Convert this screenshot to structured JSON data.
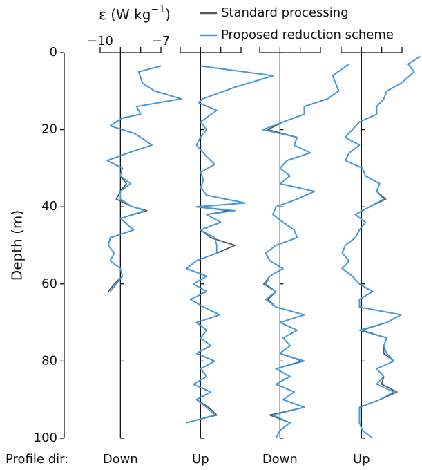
{
  "chart_data": {
    "type": "line",
    "xlabel": [
      "ε (W kg",
      "−1",
      ")"
    ],
    "ylabel": "Depth (m)",
    "direction_label": "Profile dir:",
    "xlim": [
      -10,
      -7
    ],
    "xticks": [
      {
        "value": -10,
        "label": "−10"
      },
      -9,
      -8,
      {
        "value": -7,
        "label": "−7"
      }
    ],
    "ylim": [
      0,
      100
    ],
    "yticks": [
      0,
      20,
      40,
      60,
      80,
      100
    ],
    "series": [
      {
        "name": "Standard processing",
        "color": "#555555"
      },
      {
        "name": "Proposed reduction scheme",
        "color": "#3b9ce8"
      }
    ],
    "panels": [
      {
        "direction": "Down",
        "depth": [
          3.5,
          5,
          8,
          10,
          12,
          14,
          16,
          17,
          19,
          21,
          22,
          24,
          26,
          28,
          30,
          32,
          34,
          36,
          38,
          40,
          41,
          43,
          46,
          48,
          50,
          52,
          54,
          56,
          58,
          60,
          62
        ],
        "values": [
          [
            -7.0,
            -8.1,
            -7.9,
            -7.3,
            -6.0,
            -8.2,
            -8.0,
            -8.9,
            -9.5,
            -8.3,
            -8.0,
            -7.45,
            -8.6,
            -9.65,
            -8.9,
            -9.0,
            -8.7,
            -9.0,
            -9.2,
            -8.4,
            -7.7,
            -9.0,
            -8.35,
            -9.5,
            -9.6,
            -9.3,
            -9.5,
            -9.0,
            -8.9,
            -9.3,
            -9.6
          ],
          [
            -7.0,
            -8.1,
            -7.9,
            -7.3,
            -6.0,
            -8.2,
            -8.0,
            -8.9,
            -9.5,
            -8.3,
            -8.0,
            -7.45,
            -8.6,
            -9.65,
            -8.9,
            -9.0,
            -8.5,
            -9.0,
            -9.0,
            -8.4,
            -7.8,
            -9.0,
            -8.35,
            -9.5,
            -9.6,
            -9.3,
            -9.5,
            -9.0,
            -8.9,
            -9.2,
            -9.5
          ]
        ]
      },
      {
        "direction": "Up",
        "depth": [
          3.5,
          6,
          9,
          12,
          13,
          15,
          18,
          20,
          22,
          24,
          27,
          29,
          31,
          33,
          35,
          37,
          39,
          40,
          41,
          42,
          44,
          46,
          48,
          50,
          52,
          54,
          56,
          58,
          60,
          62,
          64,
          66,
          68,
          70,
          72,
          74,
          76,
          78,
          80,
          82,
          84,
          86,
          88,
          90,
          92,
          94,
          96
        ],
        "values": [
          [
            -9.0,
            -5.4,
            -7.3,
            -8.9,
            -9.1,
            -8.2,
            -9.0,
            -8.7,
            -9.0,
            -9.2,
            -8.7,
            -8.3,
            -9.0,
            -8.85,
            -9.0,
            -8.7,
            -6.8,
            -9.2,
            -7.6,
            -8.7,
            -8.0,
            -9.0,
            -8.5,
            -7.3,
            -8.2,
            -9.2,
            -9.7,
            -8.7,
            -9.35,
            -8.7,
            -9.5,
            -8.85,
            -8.05,
            -9.2,
            -8.7,
            -9.0,
            -8.5,
            -9.2,
            -8.3,
            -9.0,
            -8.7,
            -9.35,
            -8.5,
            -9.2,
            -8.6,
            -8.2,
            -9.7
          ],
          [
            -9.0,
            -5.4,
            -7.3,
            -8.9,
            -9.1,
            -8.2,
            -9.0,
            -8.7,
            -9.0,
            -9.2,
            -8.7,
            -8.3,
            -9.0,
            -8.85,
            -9.0,
            -8.7,
            -6.8,
            -9.2,
            -7.3,
            -8.7,
            -8.0,
            -9.0,
            -8.3,
            -8.2,
            -8.2,
            -9.2,
            -9.7,
            -8.7,
            -9.35,
            -8.7,
            -9.5,
            -8.85,
            -8.05,
            -9.2,
            -8.7,
            -9.0,
            -8.5,
            -9.2,
            -8.3,
            -9.0,
            -8.7,
            -9.35,
            -8.5,
            -9.2,
            -8.7,
            -8.3,
            -9.7
          ]
        ]
      },
      {
        "direction": "Down",
        "depth": [
          3,
          6,
          10,
          12,
          14,
          16,
          18,
          20,
          22,
          24,
          26,
          28,
          30,
          32,
          34,
          36,
          38,
          40,
          42,
          44,
          46,
          48,
          50,
          52,
          54,
          56,
          58,
          60,
          62,
          64,
          66,
          68,
          70,
          72,
          74,
          76,
          78,
          80,
          82,
          84,
          86,
          88,
          90,
          92,
          94,
          96,
          98,
          100
        ],
        "values": [
          [
            -5.6,
            -6.4,
            -6.1,
            -6.65,
            -7.8,
            -7.8,
            -8.85,
            -9.6,
            -8.15,
            -8.3,
            -7.5,
            -8.65,
            -9.0,
            -8.5,
            -9.0,
            -7.3,
            -8.15,
            -9.2,
            -9.35,
            -8.85,
            -8.3,
            -8.15,
            -9.2,
            -9.7,
            -9.5,
            -8.85,
            -9.5,
            -9.8,
            -9.2,
            -9.6,
            -9.2,
            -7.8,
            -9.0,
            -8.15,
            -8.85,
            -8.5,
            -9.0,
            -7.9,
            -9.2,
            -8.5,
            -9.2,
            -8.3,
            -8.85,
            -7.8,
            -9.5,
            -8.5,
            -9.0,
            -9.2
          ],
          [
            -5.6,
            -6.4,
            -6.1,
            -6.65,
            -7.8,
            -7.8,
            -8.85,
            -9.85,
            -8.15,
            -8.3,
            -7.5,
            -8.65,
            -9.0,
            -8.5,
            -9.0,
            -7.3,
            -8.15,
            -9.2,
            -9.35,
            -8.85,
            -8.3,
            -8.15,
            -9.2,
            -9.7,
            -9.5,
            -8.85,
            -9.5,
            -9.7,
            -9.2,
            -9.7,
            -9.2,
            -7.8,
            -9.0,
            -8.15,
            -8.85,
            -8.5,
            -9.0,
            -7.8,
            -9.2,
            -8.5,
            -9.2,
            -8.3,
            -8.85,
            -7.8,
            -9.35,
            -8.5,
            -9.0,
            -9.2
          ]
        ]
      },
      {
        "direction": "Up",
        "depth": [
          1,
          3,
          5,
          8,
          10,
          12,
          14,
          16,
          18,
          20,
          22,
          24,
          26,
          28,
          30,
          32,
          34,
          36,
          38,
          40,
          42,
          44,
          46,
          48,
          50,
          52,
          54,
          56,
          58,
          60,
          62,
          64,
          66,
          68,
          70,
          72,
          74,
          76,
          78,
          80,
          82,
          84,
          86,
          88,
          90,
          92,
          94,
          96,
          98,
          100
        ],
        "values": [
          [
            -6.1,
            -6.7,
            -6.4,
            -7.05,
            -7.75,
            -7.9,
            -8.25,
            -8.25,
            -9.1,
            -9.45,
            -9.8,
            -9.1,
            -9.6,
            -9.8,
            -8.95,
            -8.8,
            -8.1,
            -8.25,
            -7.8,
            -8.6,
            -9.3,
            -8.8,
            -9.1,
            -9.3,
            -9.8,
            -9.95,
            -9.6,
            -9.95,
            -9.45,
            -9.1,
            -8.45,
            -9.1,
            -9.1,
            -7.05,
            -7.75,
            -9.0,
            -7.75,
            -7.9,
            -7.9,
            -7.4,
            -8.25,
            -7.9,
            -8.0,
            -7.25,
            -8.1,
            -9.1,
            -9.1,
            -9.1,
            -8.95,
            -8.45
          ],
          [
            -6.1,
            -6.7,
            -6.4,
            -7.05,
            -7.75,
            -7.9,
            -8.25,
            -8.25,
            -9.1,
            -9.45,
            -9.8,
            -9.1,
            -9.6,
            -9.8,
            -8.95,
            -8.8,
            -8.1,
            -8.25,
            -7.9,
            -8.6,
            -9.3,
            -8.8,
            -9.1,
            -9.3,
            -9.8,
            -9.95,
            -9.6,
            -9.95,
            -9.45,
            -9.1,
            -8.45,
            -9.1,
            -9.1,
            -7.05,
            -7.75,
            -9.1,
            -7.75,
            -7.9,
            -7.75,
            -7.4,
            -8.25,
            -7.9,
            -8.25,
            -7.4,
            -8.1,
            -9.1,
            -9.1,
            -9.1,
            -8.95,
            -8.45
          ]
        ]
      }
    ]
  }
}
